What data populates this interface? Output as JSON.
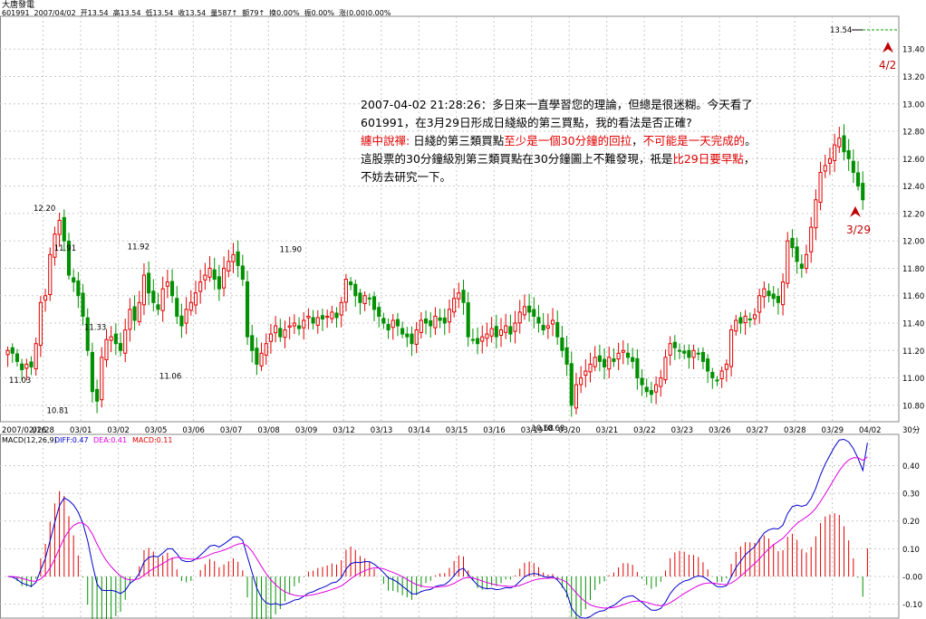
{
  "header": {
    "stock_name": "大唐發電",
    "info": [
      "601991",
      "2007/04/02",
      "开13.54",
      "高13.54",
      "低13.54",
      "收13.54",
      "量587↑",
      "额79↑",
      "换0.00%",
      "振0.00%",
      "涨(0.00)0.00%"
    ]
  },
  "annotation": {
    "line1": "2007-04-02 21:28:26：多日來一直學習您的理論，但總是很迷糊。今天看了601991，在3月29日形成日綫級的第三買點，我的看法是否正確?",
    "reply_label": "纏中說禪:",
    "reply_p1": " 日綫的第三類買點",
    "reply_r1": "至少是一個30分鐘的回拉",
    "reply_p2": "，",
    "reply_r2": "不可能是一天完成的",
    "reply_p3": "。這股票的30分鐘級別第三類買點在30分鐘圖上不難發現，祇是",
    "reply_r3": "比29日要早點",
    "reply_p4": "，不妨去研究一下。"
  },
  "price_tag": "13.54",
  "markers": [
    {
      "label": "4/2",
      "price": 13.4,
      "pos": "end"
    },
    {
      "label": "3/29",
      "price": 12.2,
      "pos": "mid"
    }
  ],
  "colors": {
    "up": "#e00000",
    "down": "#009000",
    "diff": "#0000cc",
    "dea": "#e000e0",
    "grid": "#c8c8c8"
  },
  "chart_data": [
    {
      "type": "candlestick",
      "y_ticks": [
        "13.40",
        "13.20",
        "13.00",
        "12.80",
        "12.60",
        "12.40",
        "12.20",
        "12.00",
        "11.80",
        "11.60",
        "11.40",
        "11.20",
        "11.00",
        "10.80"
      ],
      "ylim": [
        10.68,
        13.56
      ],
      "x_ticks": [
        "2007/02/16",
        "02/28",
        "03/01",
        "03/02",
        "03/05",
        "03/06",
        "03/07",
        "03/08",
        "03/09",
        "03/12",
        "03/13",
        "03/14",
        "03/15",
        "03/16",
        "03/19",
        "03/20",
        "03/21",
        "03/22",
        "03/23",
        "03/26",
        "03/27",
        "03/28",
        "03/29",
        "04/02"
      ],
      "x_right_label": "30分",
      "price_labels": [
        {
          "text": "12.20",
          "value": 12.2,
          "day": 0.65
        },
        {
          "text": "11.03",
          "value": 11.03,
          "day": 0.0
        },
        {
          "text": "10.81",
          "value": 10.81,
          "day": 1.0
        },
        {
          "text": "11.91",
          "value": 11.91,
          "day": 1.2
        },
        {
          "text": "11.33",
          "value": 11.33,
          "day": 2.0
        },
        {
          "text": "11.92",
          "value": 11.92,
          "day": 3.15
        },
        {
          "text": "11.06",
          "value": 11.06,
          "day": 4.0
        },
        {
          "text": "11.90",
          "value": 11.9,
          "day": 7.2
        },
        {
          "text": "10.68",
          "value": 10.68,
          "day": 13.9
        },
        {
          "text": "10.68",
          "value": 10.68,
          "day": 14.2
        }
      ],
      "closes": [
        11.2,
        11.18,
        11.12,
        11.06,
        11.1,
        11.08,
        11.25,
        11.55,
        11.6,
        11.9,
        12.05,
        12.15,
        12.0,
        11.75,
        11.7,
        11.6,
        11.45,
        11.2,
        10.9,
        10.83,
        11.15,
        11.28,
        11.3,
        11.25,
        11.2,
        11.35,
        11.5,
        11.42,
        11.55,
        11.75,
        11.62,
        11.55,
        11.5,
        11.65,
        11.7,
        11.6,
        11.45,
        11.38,
        11.5,
        11.55,
        11.62,
        11.7,
        11.75,
        11.8,
        11.72,
        11.65,
        11.8,
        11.85,
        11.9,
        11.82,
        11.72,
        11.3,
        11.2,
        11.1,
        11.18,
        11.25,
        11.32,
        11.38,
        11.3,
        11.35,
        11.38,
        11.4,
        11.36,
        11.42,
        11.45,
        11.4,
        11.44,
        11.43,
        11.45,
        11.48,
        11.44,
        11.55,
        11.72,
        11.68,
        11.6,
        11.55,
        11.6,
        11.58,
        11.5,
        11.45,
        11.4,
        11.35,
        11.42,
        11.38,
        11.32,
        11.3,
        11.25,
        11.35,
        11.42,
        11.4,
        11.38,
        11.45,
        11.42,
        11.4,
        11.5,
        11.58,
        11.62,
        11.55,
        11.3,
        11.28,
        11.25,
        11.3,
        11.32,
        11.36,
        11.3,
        11.35,
        11.38,
        11.32,
        11.4,
        11.48,
        11.52,
        11.48,
        11.45,
        11.4,
        11.35,
        11.38,
        11.42,
        11.3,
        11.2,
        11.1,
        10.8,
        10.95,
        11.0,
        11.05,
        11.1,
        11.15,
        11.12,
        11.08,
        11.15,
        11.12,
        11.18,
        11.2,
        11.15,
        11.12,
        11.0,
        10.95,
        10.9,
        10.88,
        10.95,
        11.0,
        11.15,
        11.25,
        11.22,
        11.2,
        11.18,
        11.15,
        11.2,
        11.18,
        11.12,
        11.05,
        11.0,
        10.98,
        11.05,
        11.1,
        11.35,
        11.42,
        11.4,
        11.45,
        11.43,
        11.46,
        11.6,
        11.65,
        11.6,
        11.58,
        11.55,
        11.7,
        12.0,
        11.95,
        11.85,
        11.8,
        11.9,
        12.1,
        12.3,
        12.5,
        12.55,
        12.6,
        12.7,
        12.75,
        12.65,
        12.6,
        12.5,
        12.4,
        12.3,
        13.54
      ],
      "lows_marked": [
        [
          19,
          10.81
        ],
        [
          122,
          10.68
        ]
      ]
    },
    {
      "type": "line",
      "title": "MACD(12,26,9)",
      "legend": [
        "DIFF:0.47",
        "DEA:0.41",
        "MACD:0.11"
      ],
      "series": [
        {
          "name": "DIFF"
        },
        {
          "name": "DEA"
        },
        {
          "name": "MACD"
        }
      ],
      "y_ticks": [
        "0.40",
        "0.30",
        "0.20",
        "0.10",
        "-0.00",
        "-0.10"
      ],
      "ylim": [
        -0.15,
        0.47
      ]
    }
  ]
}
